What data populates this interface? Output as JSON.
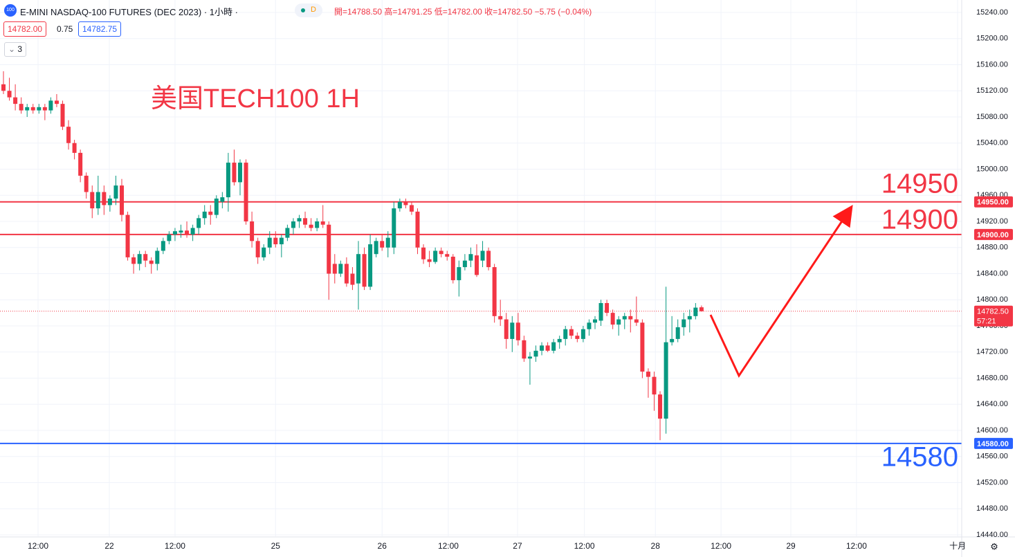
{
  "header": {
    "badge": "100",
    "title": "E-MINI NASDAQ-100 FUTURES (DEC 2023) · 1小時 ·",
    "status": "D",
    "ohlc": "開=14788.50 高=14791.25 低=14782.00 收=14782.50 −5.75 (−0.04%)",
    "bid": "14782.00",
    "spread": "0.75",
    "ask": "14782.75",
    "indicators": "3"
  },
  "chart_data": {
    "type": "candlestick",
    "annotation": "美国TECH100 1H",
    "up_color": "#089981",
    "down_color": "#f23645",
    "x": [
      0,
      1,
      2,
      3,
      4,
      5,
      6,
      7,
      8,
      9,
      10,
      11,
      12,
      13,
      14,
      15,
      16,
      17,
      18,
      19,
      20,
      21,
      22,
      23,
      24,
      25,
      26,
      27,
      28,
      29,
      30,
      31,
      32,
      33,
      34,
      35,
      36,
      37,
      38,
      39,
      40,
      41,
      42,
      43,
      44,
      45,
      46,
      47,
      48,
      49,
      50,
      51,
      52,
      53,
      54,
      55,
      56,
      57,
      58,
      59,
      60,
      61,
      62,
      63,
      64,
      65,
      66,
      67,
      68,
      69,
      70,
      71,
      72,
      73,
      74,
      75,
      76,
      77,
      78,
      79,
      80,
      81,
      82,
      83,
      84,
      85,
      86,
      87,
      88,
      89,
      90,
      91,
      92,
      93,
      94,
      95,
      96,
      97,
      98,
      99,
      100,
      101,
      102,
      103,
      104,
      105,
      106,
      107,
      108,
      109,
      110,
      111,
      112,
      113,
      114,
      115,
      116,
      117,
      118
    ],
    "open": [
      15130,
      15120,
      15110,
      15100,
      15090,
      15095,
      15090,
      15095,
      15090,
      15105,
      15100,
      15065,
      15040,
      15025,
      14990,
      14965,
      14940,
      14965,
      14945,
      14955,
      14975,
      14930,
      14865,
      14855,
      14870,
      14860,
      14855,
      14875,
      14890,
      14900,
      14903,
      14906,
      14900,
      14910,
      14925,
      14935,
      14930,
      14950,
      14957,
      15010,
      14980,
      15010,
      14920,
      14890,
      14865,
      14880,
      14895,
      14885,
      14895,
      14910,
      14920,
      14925,
      14915,
      14910,
      14920,
      14915,
      14855,
      14840,
      14855,
      14840,
      14825,
      14870,
      14820,
      14870,
      14890,
      14880,
      14880,
      14940,
      14950,
      14945,
      14935,
      14880,
      14862,
      14858,
      14875,
      14870,
      14866,
      14830,
      14850,
      14860,
      14868,
      14860,
      14875,
      14850,
      14775,
      14770,
      14740,
      14765,
      14738,
      14710,
      14713,
      14722,
      14730,
      14722,
      14735,
      14740,
      14755,
      14745,
      14740,
      14755,
      14765,
      14768,
      14795,
      14780,
      14762,
      14770,
      14775,
      14770,
      14765,
      14690,
      14682,
      14655,
      14618,
      14735,
      14740,
      14758,
      14770,
      14775,
      14788.5
    ],
    "high": [
      15150,
      15140,
      15130,
      15110,
      15100,
      15100,
      15100,
      15100,
      15110,
      15115,
      15105,
      15075,
      15045,
      15030,
      14995,
      14975,
      14990,
      14975,
      14960,
      14990,
      14985,
      14935,
      14870,
      14875,
      14875,
      14865,
      14880,
      14895,
      14905,
      14910,
      14915,
      14920,
      14915,
      14930,
      14945,
      14945,
      14960,
      14965,
      15025,
      15030,
      15015,
      15015,
      14935,
      14895,
      14885,
      14905,
      14905,
      14900,
      14915,
      14925,
      14930,
      14935,
      14925,
      14925,
      14945,
      14920,
      14870,
      14860,
      14865,
      14850,
      14890,
      14880,
      14900,
      14895,
      14900,
      14905,
      14950,
      14955,
      14955,
      14950,
      14940,
      14885,
      14875,
      14880,
      14880,
      14875,
      14870,
      14860,
      14870,
      14880,
      14885,
      14890,
      14880,
      14855,
      14800,
      14780,
      14775,
      14780,
      14745,
      14720,
      14730,
      14735,
      14735,
      14740,
      14745,
      14760,
      14760,
      14750,
      14760,
      14770,
      14775,
      14800,
      14800,
      14785,
      14775,
      14780,
      14785,
      14805,
      14770,
      14695,
      14690,
      14660,
      14820,
      14775,
      14770,
      14780,
      14785,
      14795,
      14791.25
    ],
    "low": [
      15115,
      15105,
      15090,
      15085,
      15080,
      15085,
      15085,
      15075,
      15085,
      15095,
      15060,
      15030,
      15015,
      14980,
      14955,
      14925,
      14930,
      14930,
      14935,
      14945,
      14920,
      14860,
      14840,
      14845,
      14850,
      14840,
      14845,
      14870,
      14885,
      14890,
      14895,
      14895,
      14890,
      14900,
      14915,
      14915,
      14925,
      14940,
      14935,
      14975,
      14960,
      14915,
      14880,
      14855,
      14860,
      14870,
      14880,
      14865,
      14890,
      14900,
      14910,
      14910,
      14905,
      14905,
      14910,
      14800,
      14825,
      14835,
      14820,
      14815,
      14785,
      14815,
      14815,
      14865,
      14875,
      14865,
      14870,
      14935,
      14940,
      14930,
      14870,
      14855,
      14850,
      14855,
      14865,
      14860,
      14825,
      14805,
      14845,
      14850,
      14835,
      14850,
      14845,
      14765,
      14760,
      14725,
      14720,
      14730,
      14705,
      14670,
      14705,
      14715,
      14720,
      14718,
      14725,
      14730,
      14740,
      14735,
      14735,
      14745,
      14755,
      14760,
      14775,
      14755,
      14745,
      14755,
      14750,
      14760,
      14680,
      14650,
      14630,
      14585,
      14595,
      14730,
      14735,
      14745,
      14750,
      14770,
      14782
    ],
    "close": [
      15120,
      15110,
      15100,
      15090,
      15095,
      15090,
      15095,
      15090,
      15105,
      15100,
      15065,
      15040,
      15025,
      14990,
      14965,
      14940,
      14965,
      14945,
      14955,
      14975,
      14930,
      14865,
      14855,
      14870,
      14860,
      14855,
      14875,
      14890,
      14900,
      14905,
      14906,
      14900,
      14910,
      14925,
      14935,
      14930,
      14955,
      14957,
      15010,
      14980,
      15010,
      14920,
      14890,
      14865,
      14880,
      14895,
      14885,
      14895,
      14910,
      14920,
      14925,
      14915,
      14910,
      14920,
      14915,
      14840,
      14840,
      14855,
      14825,
      14823,
      14870,
      14820,
      14885,
      14890,
      14880,
      14895,
      14940,
      14950,
      14945,
      14935,
      14880,
      14862,
      14858,
      14875,
      14870,
      14866,
      14830,
      14850,
      14860,
      14870,
      14838,
      14875,
      14850,
      14775,
      14770,
      14740,
      14765,
      14738,
      14710,
      14713,
      14722,
      14730,
      14722,
      14735,
      14740,
      14755,
      14745,
      14740,
      14755,
      14765,
      14770,
      14795,
      14780,
      14762,
      14770,
      14775,
      14770,
      14765,
      14690,
      14682,
      14655,
      14618,
      14735,
      14740,
      14758,
      14770,
      14775,
      14788,
      14782.5
    ],
    "xlim": [
      -0.585,
      161.99
    ],
    "ylim": [
      14437.9,
      15259.07
    ],
    "yticks": [
      {
        "value": 15240,
        "label": "15240.00"
      },
      {
        "value": 15200,
        "label": "15200.00"
      },
      {
        "value": 15160,
        "label": "15160.00"
      },
      {
        "value": 15120,
        "label": "15120.00"
      },
      {
        "value": 15080,
        "label": "15080.00"
      },
      {
        "value": 15040,
        "label": "15040.00"
      },
      {
        "value": 15000,
        "label": "15000.00"
      },
      {
        "value": 14960,
        "label": "14960.00"
      },
      {
        "value": 14920,
        "label": "14920.00"
      },
      {
        "value": 14880,
        "label": "14880.00"
      },
      {
        "value": 14840,
        "label": "14840.00"
      },
      {
        "value": 14800,
        "label": "14800.00"
      },
      {
        "value": 14760,
        "label": "14760.00"
      },
      {
        "value": 14720,
        "label": "14720.00"
      },
      {
        "value": 14680,
        "label": "14680.00"
      },
      {
        "value": 14640,
        "label": "14640.00"
      },
      {
        "value": 14600,
        "label": "14600.00"
      },
      {
        "value": 14560,
        "label": "14560.00"
      },
      {
        "value": 14520,
        "label": "14520.00"
      },
      {
        "value": 14480,
        "label": "14480.00"
      },
      {
        "value": 14440,
        "label": "14440.00"
      }
    ],
    "xticks": [
      {
        "value": 5.85,
        "label": "12:00"
      },
      {
        "value": 17.9,
        "label": "22"
      },
      {
        "value": 29,
        "label": "12:00"
      },
      {
        "value": 46,
        "label": "25"
      },
      {
        "value": 64,
        "label": "26"
      },
      {
        "value": 75.2,
        "label": "12:00"
      },
      {
        "value": 86.9,
        "label": "27"
      },
      {
        "value": 98.2,
        "label": "12:00"
      },
      {
        "value": 110.2,
        "label": "28"
      },
      {
        "value": 121.3,
        "label": "12:00"
      },
      {
        "value": 133.1,
        "label": "29"
      },
      {
        "value": 144.2,
        "label": "12:00"
      },
      {
        "value": 161.3,
        "label": "十月"
      }
    ],
    "grid": true,
    "levels": [
      {
        "value": 14950,
        "label": "14950",
        "axis_label": "14950.00",
        "color": "#f23645"
      },
      {
        "value": 14900,
        "label": "14900",
        "axis_label": "14900.00",
        "color": "#f23645"
      },
      {
        "value": 14580,
        "label": "14580",
        "axis_label": "14580.00",
        "color": "#2962ff"
      }
    ],
    "last_price": 14782.5,
    "last_label": "14782.50",
    "countdown": "57:21"
  }
}
